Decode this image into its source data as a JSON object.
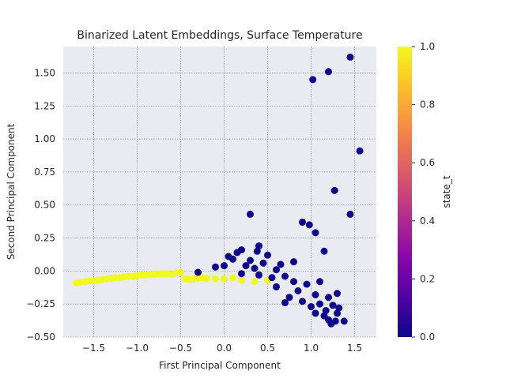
{
  "chart_data": {
    "type": "scatter",
    "title": "Binarized Latent Embeddings, Surface Temperature",
    "xlabel": "First Principal Component",
    "ylabel": "Second Principal Component",
    "xlim": [
      -1.85,
      1.75
    ],
    "ylim": [
      -0.5,
      1.7
    ],
    "xticks": [
      -1.5,
      -1.0,
      -0.5,
      0.0,
      0.5,
      1.0,
      1.5
    ],
    "xtick_labels": [
      "−1.5",
      "−1.0",
      "−0.5",
      "0.0",
      "0.5",
      "1.0",
      "1.5"
    ],
    "yticks": [
      -0.5,
      -0.25,
      0.0,
      0.25,
      0.5,
      0.75,
      1.0,
      1.25,
      1.5
    ],
    "ytick_labels": [
      "−0.50",
      "−0.25",
      "0.00",
      "0.25",
      "0.50",
      "0.75",
      "1.00",
      "1.25",
      "1.50"
    ],
    "grid": true,
    "colorbar": {
      "label": "state_t",
      "range": [
        0.0,
        1.0
      ],
      "ticks": [
        0.0,
        0.2,
        0.4,
        0.6,
        0.8,
        1.0
      ],
      "tick_labels": [
        "0.0",
        "0.2",
        "0.4",
        "0.6",
        "0.8",
        "1.0"
      ],
      "colormap": "plasma",
      "stops": [
        "#0d0887",
        "#5302a3",
        "#8b0aa5",
        "#b83289",
        "#db5c68",
        "#f48849",
        "#febd2a",
        "#f0f921"
      ]
    },
    "series": [
      {
        "state_t": 1,
        "color": "#f0f921",
        "points": [
          [
            -1.7,
            -0.09
          ],
          [
            -1.65,
            -0.085
          ],
          [
            -1.6,
            -0.08
          ],
          [
            -1.55,
            -0.075
          ],
          [
            -1.5,
            -0.075
          ],
          [
            -1.45,
            -0.07
          ],
          [
            -1.4,
            -0.065
          ],
          [
            -1.35,
            -0.06
          ],
          [
            -1.3,
            -0.055
          ],
          [
            -1.25,
            -0.05
          ],
          [
            -1.2,
            -0.05
          ],
          [
            -1.15,
            -0.045
          ],
          [
            -1.1,
            -0.04
          ],
          [
            -1.05,
            -0.04
          ],
          [
            -1.0,
            -0.035
          ],
          [
            -0.95,
            -0.03
          ],
          [
            -0.9,
            -0.03
          ],
          [
            -0.85,
            -0.025
          ],
          [
            -0.8,
            -0.025
          ],
          [
            -0.75,
            -0.02
          ],
          [
            -0.7,
            -0.02
          ],
          [
            -0.65,
            -0.02
          ],
          [
            -0.6,
            -0.025
          ],
          [
            -0.55,
            -0.015
          ],
          [
            -0.5,
            -0.01
          ],
          [
            -0.45,
            -0.06
          ],
          [
            -0.4,
            -0.065
          ],
          [
            -0.35,
            -0.06
          ],
          [
            -0.3,
            -0.055
          ],
          [
            -0.25,
            -0.05
          ],
          [
            -0.2,
            -0.055
          ],
          [
            -0.1,
            -0.06
          ],
          [
            0.0,
            -0.06
          ],
          [
            0.1,
            -0.05
          ],
          [
            0.2,
            -0.07
          ],
          [
            0.35,
            -0.08
          ],
          [
            0.5,
            -0.07
          ]
        ]
      },
      {
        "state_t": 0,
        "color": "#0d0887",
        "points": [
          [
            1.45,
            1.62
          ],
          [
            1.2,
            1.51
          ],
          [
            1.02,
            1.45
          ],
          [
            1.56,
            0.91
          ],
          [
            1.27,
            0.61
          ],
          [
            0.3,
            0.43
          ],
          [
            1.45,
            0.43
          ],
          [
            0.9,
            0.37
          ],
          [
            0.98,
            0.35
          ],
          [
            1.05,
            0.29
          ],
          [
            0.4,
            0.19
          ],
          [
            0.38,
            0.15
          ],
          [
            1.15,
            0.15
          ],
          [
            0.15,
            0.14
          ],
          [
            0.2,
            0.16
          ],
          [
            0.5,
            0.12
          ],
          [
            0.05,
            0.11
          ],
          [
            0.1,
            0.09
          ],
          [
            0.3,
            0.08
          ],
          [
            0.8,
            0.07
          ],
          [
            0.45,
            0.06
          ],
          [
            0.65,
            0.05
          ],
          [
            0.25,
            0.04
          ],
          [
            -0.1,
            0.03
          ],
          [
            0.0,
            0.04
          ],
          [
            0.35,
            0.02
          ],
          [
            0.6,
            0.01
          ],
          [
            -0.3,
            -0.01
          ],
          [
            0.2,
            -0.02
          ],
          [
            0.4,
            -0.03
          ],
          [
            0.7,
            -0.04
          ],
          [
            0.55,
            -0.05
          ],
          [
            0.8,
            -0.08
          ],
          [
            0.95,
            -0.1
          ],
          [
            1.1,
            -0.08
          ],
          [
            0.6,
            -0.12
          ],
          [
            0.85,
            -0.15
          ],
          [
            1.05,
            -0.18
          ],
          [
            1.2,
            -0.2
          ],
          [
            1.3,
            -0.17
          ],
          [
            0.75,
            -0.2
          ],
          [
            0.9,
            -0.23
          ],
          [
            1.0,
            -0.27
          ],
          [
            1.1,
            -0.25
          ],
          [
            1.25,
            -0.26
          ],
          [
            1.32,
            -0.28
          ],
          [
            1.05,
            -0.32
          ],
          [
            1.15,
            -0.34
          ],
          [
            1.2,
            -0.37
          ],
          [
            1.28,
            -0.38
          ],
          [
            1.38,
            -0.38
          ],
          [
            1.23,
            -0.4
          ],
          [
            1.3,
            -0.32
          ],
          [
            1.17,
            -0.3
          ],
          [
            0.7,
            -0.24
          ]
        ]
      }
    ]
  }
}
